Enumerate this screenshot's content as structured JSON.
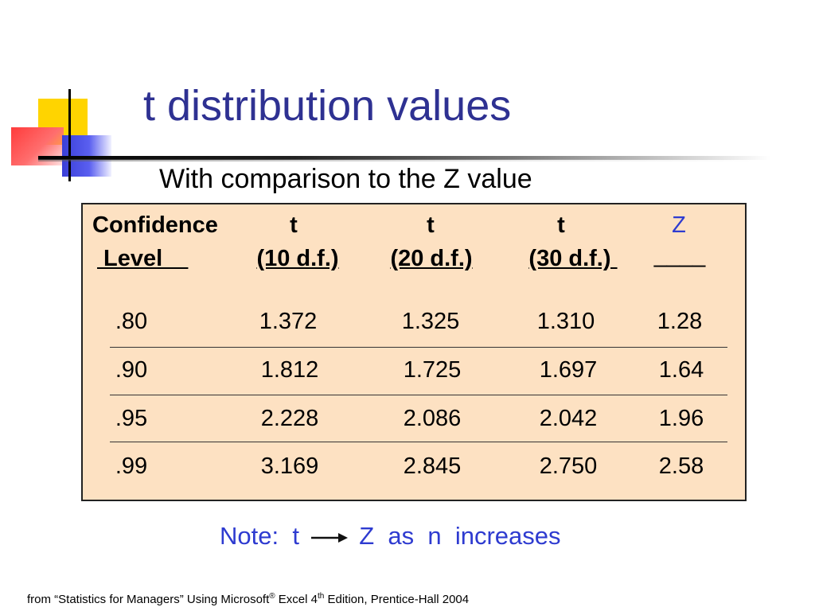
{
  "slide": {
    "title": "t distribution values",
    "subtitle": "With comparison to the Z value"
  },
  "table": {
    "headers": [
      {
        "line1": "Confidence",
        "line2": " Level    "
      },
      {
        "line1": "t",
        "line2": "(10 d.f.)"
      },
      {
        "line1": "t",
        "line2": "(20 d.f.)"
      },
      {
        "line1": "t",
        "line2": "(30 d.f.) "
      },
      {
        "line1": "Z",
        "line2": "____"
      }
    ],
    "rows": [
      [
        ".80",
        "1.372",
        "1.325",
        "1.310",
        "1.28"
      ],
      [
        ".90",
        "1.812",
        "1.725",
        "1.697",
        "1.64"
      ],
      [
        ".95",
        "2.228",
        "2.086",
        "2.042",
        "1.96"
      ],
      [
        ".99",
        "3.169",
        "2.845",
        "2.750",
        "2.58"
      ]
    ]
  },
  "note": {
    "prefix": "Note:",
    "from": "t",
    "to": "Z",
    "rest": "as  n  increases"
  },
  "source": {
    "part1": "from “Statistics for Managers” Using Microsoft",
    "reg": "®",
    "part2": " Excel 4",
    "th": "th",
    "part3": " Edition, Prentice-Hall 2004"
  },
  "colors": {
    "title": "#2e3192",
    "accent_blue": "#2e3bd0",
    "panel_bg": "#fde1c2"
  }
}
